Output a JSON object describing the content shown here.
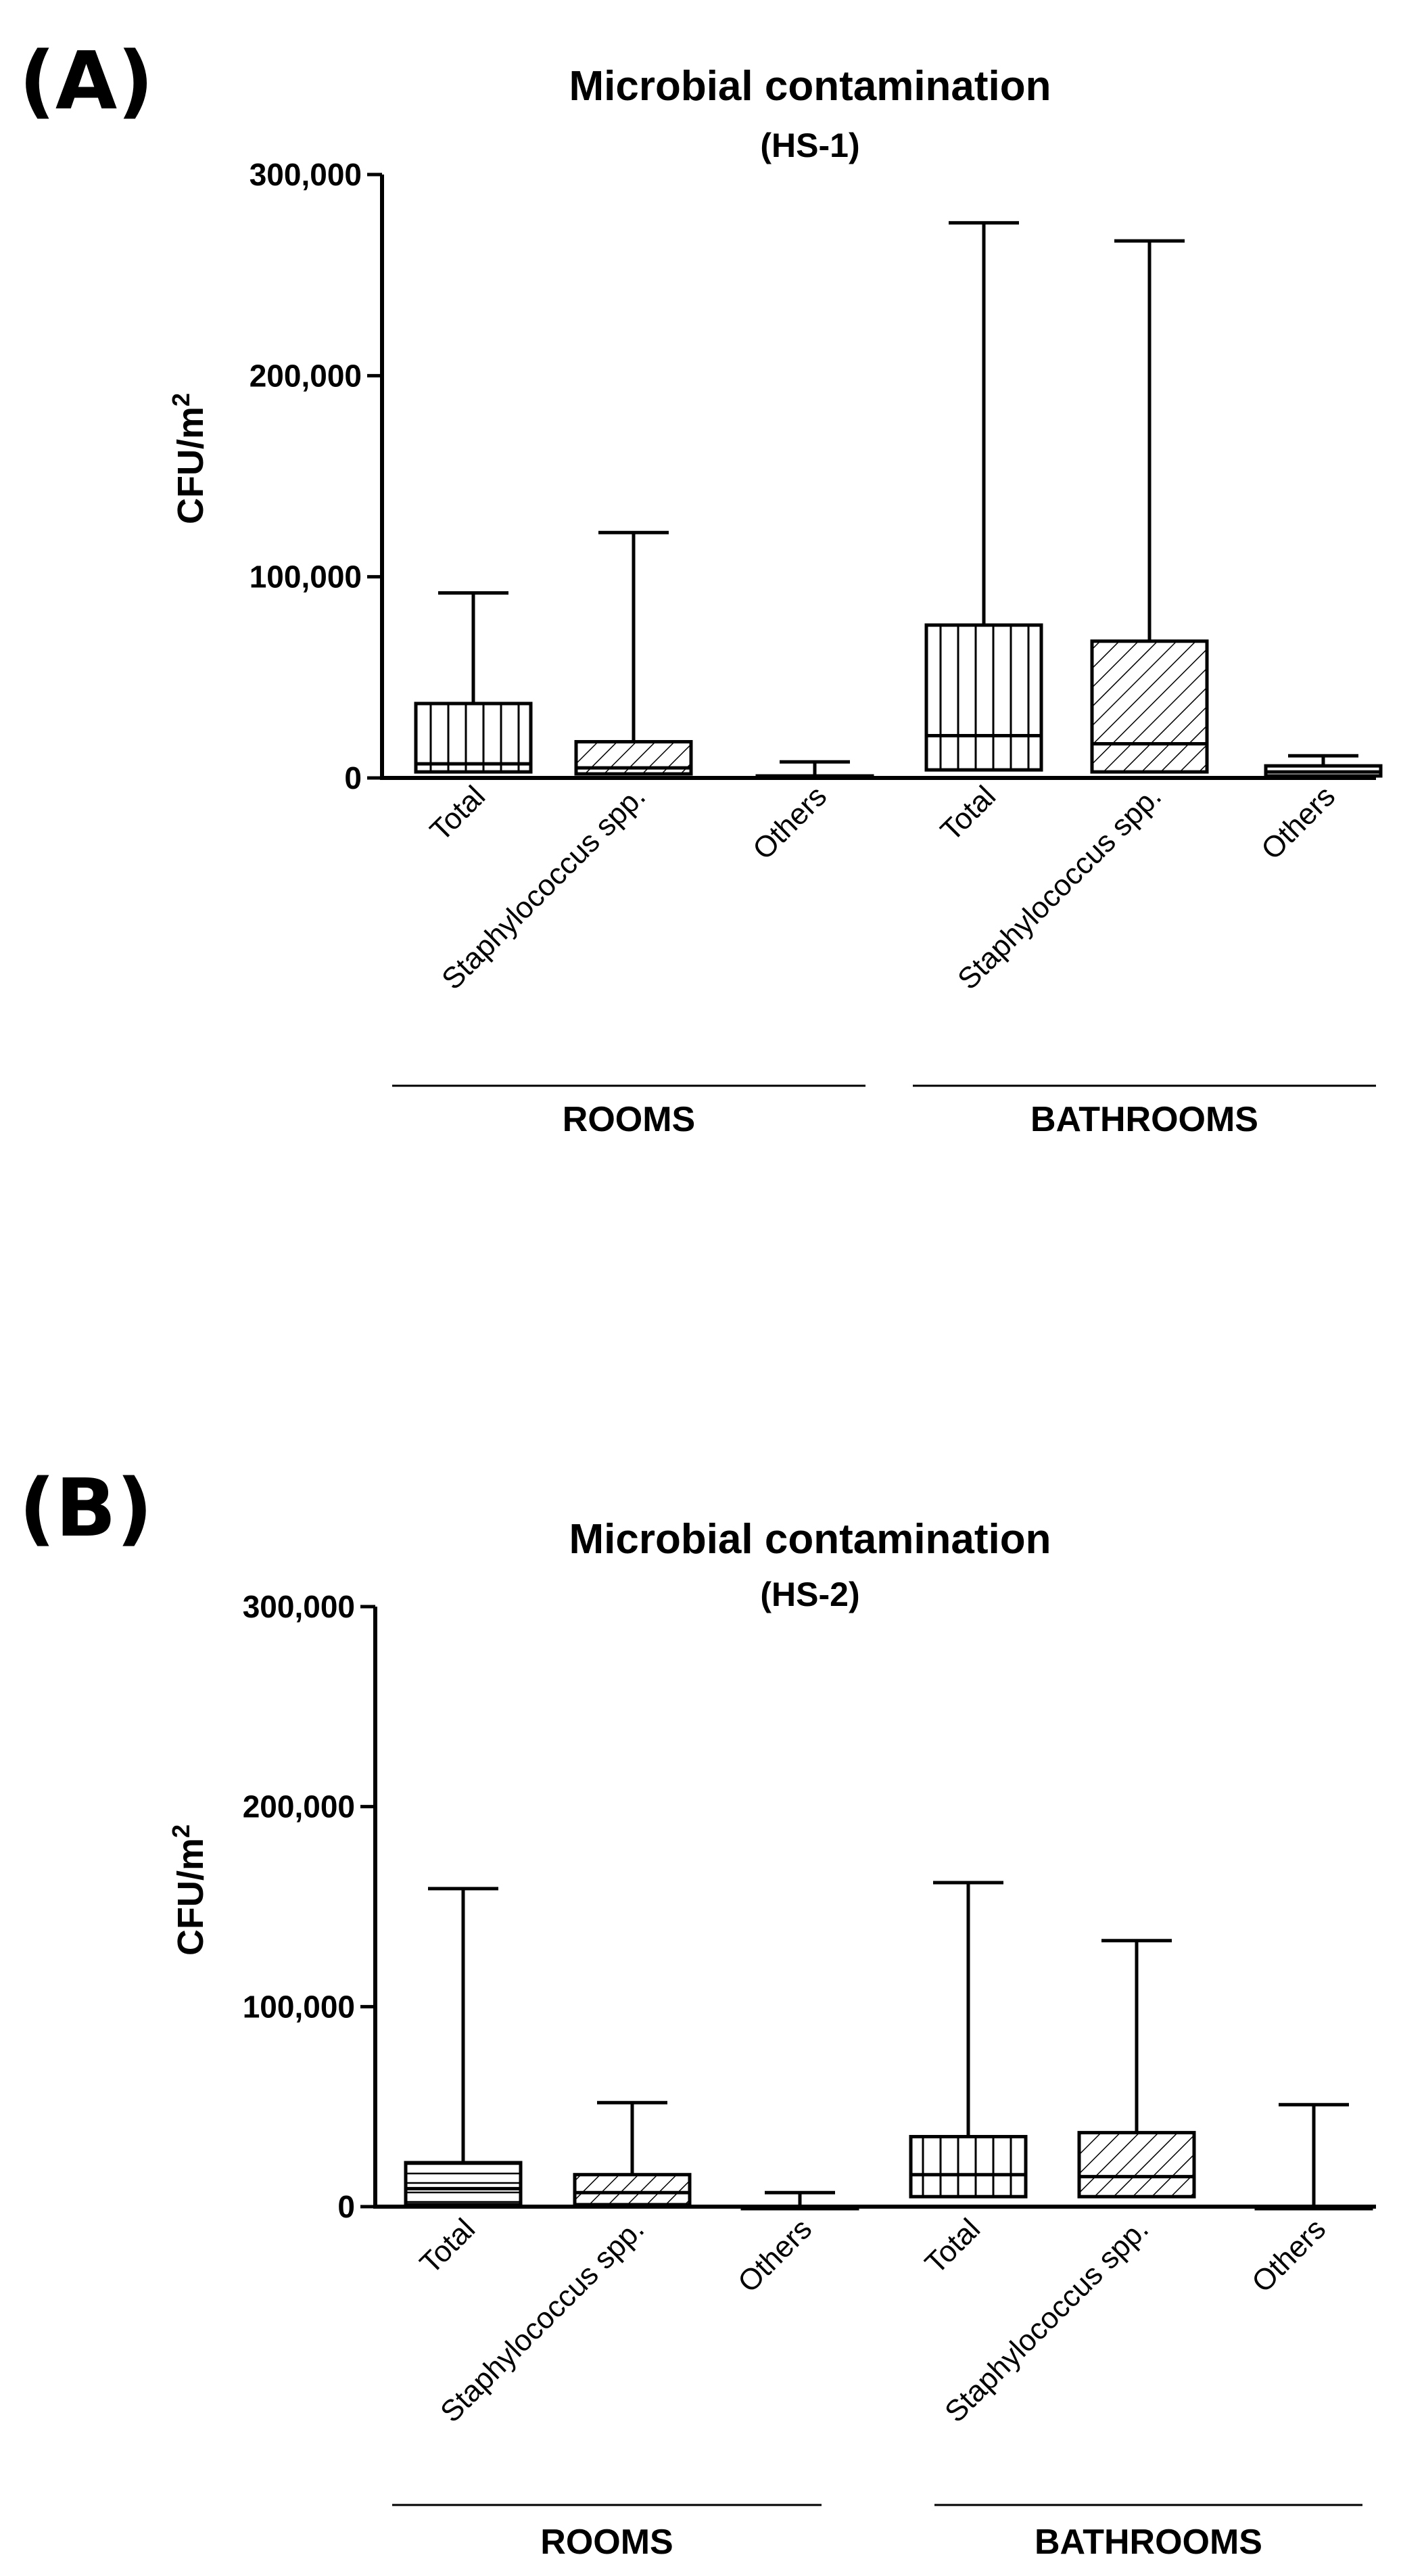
{
  "chart_data": [
    {
      "type": "box",
      "panel_label": "(A)",
      "title": "Microbial contamination",
      "subtitle": "(HS-1)",
      "ylabel_main": "CFU/m",
      "ylabel_sup": "2",
      "ylim": [
        0,
        300000
      ],
      "yticks": [
        0,
        100000,
        200000,
        300000
      ],
      "ytick_labels": [
        "0",
        "100,000",
        "200,000",
        "300,000"
      ],
      "categories": [
        "Total",
        "Staphylococcus spp.",
        "Others",
        "Total",
        "Staphylococcus spp.",
        "Others"
      ],
      "groups": [
        {
          "name": "ROOMS",
          "categories": [
            "Total",
            "Staphylococcus spp.",
            "Others"
          ]
        },
        {
          "name": "BATHROOMS",
          "categories": [
            "Total",
            "Staphylococcus spp.",
            "Others"
          ]
        }
      ],
      "boxes": [
        {
          "min": 0,
          "q1": 3000,
          "median": 7000,
          "q3": 37000,
          "max": 92000,
          "pattern": "vertical"
        },
        {
          "min": 0,
          "q1": 2000,
          "median": 5000,
          "q3": 18000,
          "max": 122000,
          "pattern": "diagonal"
        },
        {
          "min": 0,
          "q1": 0,
          "median": 500,
          "q3": 1000,
          "max": 8000,
          "pattern": "horizontal"
        },
        {
          "min": 0,
          "q1": 4000,
          "median": 21000,
          "q3": 76000,
          "max": 276000,
          "pattern": "vertical"
        },
        {
          "min": 0,
          "q1": 3000,
          "median": 17000,
          "q3": 68000,
          "max": 267000,
          "pattern": "diagonal"
        },
        {
          "min": 0,
          "q1": 1000,
          "median": 3000,
          "q3": 6000,
          "max": 11000,
          "pattern": "horizontal"
        }
      ]
    },
    {
      "type": "box",
      "panel_label": "(B)",
      "title": "Microbial contamination",
      "subtitle": "(HS-2)",
      "ylabel_main": "CFU/m",
      "ylabel_sup": "2",
      "ylim": [
        0,
        300000
      ],
      "yticks": [
        0,
        100000,
        200000,
        300000
      ],
      "ytick_labels": [
        "0",
        "100,000",
        "200,000",
        "300,000"
      ],
      "categories": [
        "Total",
        "Staphylococcus spp.",
        "Others",
        "Total",
        "Staphylococcus spp.",
        "Others"
      ],
      "groups": [
        {
          "name": "ROOMS",
          "categories": [
            "Total",
            "Staphylococcus spp.",
            "Others"
          ]
        },
        {
          "name": "BATHROOMS",
          "categories": [
            "Total",
            "Staphylococcus spp.",
            "Others"
          ]
        }
      ],
      "boxes": [
        {
          "min": 0,
          "q1": 1000,
          "median": 9000,
          "q3": 22000,
          "max": 159000,
          "pattern": "horizontal"
        },
        {
          "min": 0,
          "q1": 1000,
          "median": 7000,
          "q3": 16000,
          "max": 52000,
          "pattern": "diagonal"
        },
        {
          "min": 0,
          "q1": 0,
          "median": 0,
          "q3": 0,
          "max": 7000,
          "pattern": "none"
        },
        {
          "min": 0,
          "q1": 5000,
          "median": 16000,
          "q3": 35000,
          "max": 162000,
          "pattern": "vertical"
        },
        {
          "min": 0,
          "q1": 5000,
          "median": 15000,
          "q3": 37000,
          "max": 133000,
          "pattern": "diagonal"
        },
        {
          "min": 0,
          "q1": 0,
          "median": 0,
          "q3": 0,
          "max": 51000,
          "pattern": "none"
        }
      ]
    }
  ]
}
